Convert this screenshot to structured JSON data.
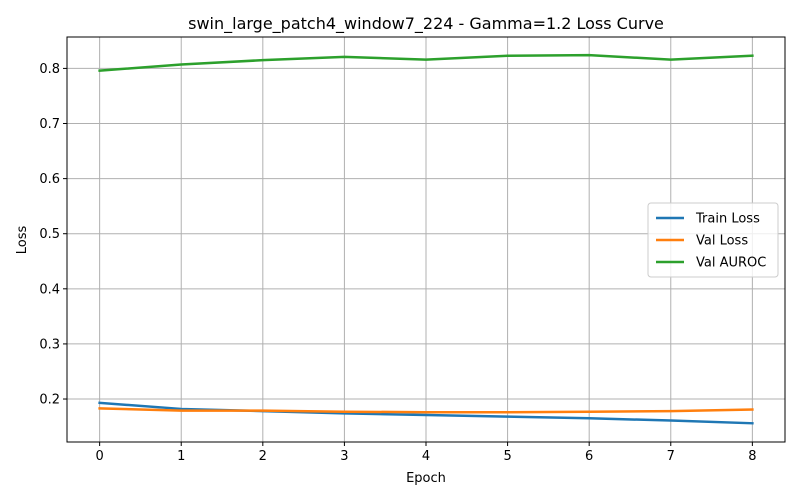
{
  "chart_data": {
    "type": "line",
    "title": "swin_large_patch4_window7_224 - Gamma=1.2 Loss Curve",
    "xlabel": "Epoch",
    "ylabel": "Loss",
    "x": [
      0,
      1,
      2,
      3,
      4,
      5,
      6,
      7,
      8
    ],
    "xlim": [
      -0.4,
      8.4
    ],
    "ylim": [
      0.122,
      0.857
    ],
    "xticks": [
      0,
      1,
      2,
      3,
      4,
      5,
      6,
      7,
      8
    ],
    "yticks": [
      0.2,
      0.3,
      0.4,
      0.5,
      0.6,
      0.7,
      0.8
    ],
    "ytick_labels": [
      "0.2",
      "0.3",
      "0.4",
      "0.5",
      "0.6",
      "0.7",
      "0.8"
    ],
    "grid": true,
    "legend": "center-right",
    "series": [
      {
        "name": "Train Loss",
        "color": "#1f77b4",
        "values": [
          0.193,
          0.182,
          0.178,
          0.174,
          0.171,
          0.168,
          0.165,
          0.161,
          0.156
        ]
      },
      {
        "name": "Val Loss",
        "color": "#ff7f0e",
        "values": [
          0.183,
          0.179,
          0.179,
          0.177,
          0.176,
          0.176,
          0.177,
          0.178,
          0.181
        ]
      },
      {
        "name": "Val AUROC",
        "color": "#2ca02c",
        "values": [
          0.796,
          0.807,
          0.815,
          0.821,
          0.816,
          0.823,
          0.824,
          0.816,
          0.823
        ]
      }
    ]
  }
}
